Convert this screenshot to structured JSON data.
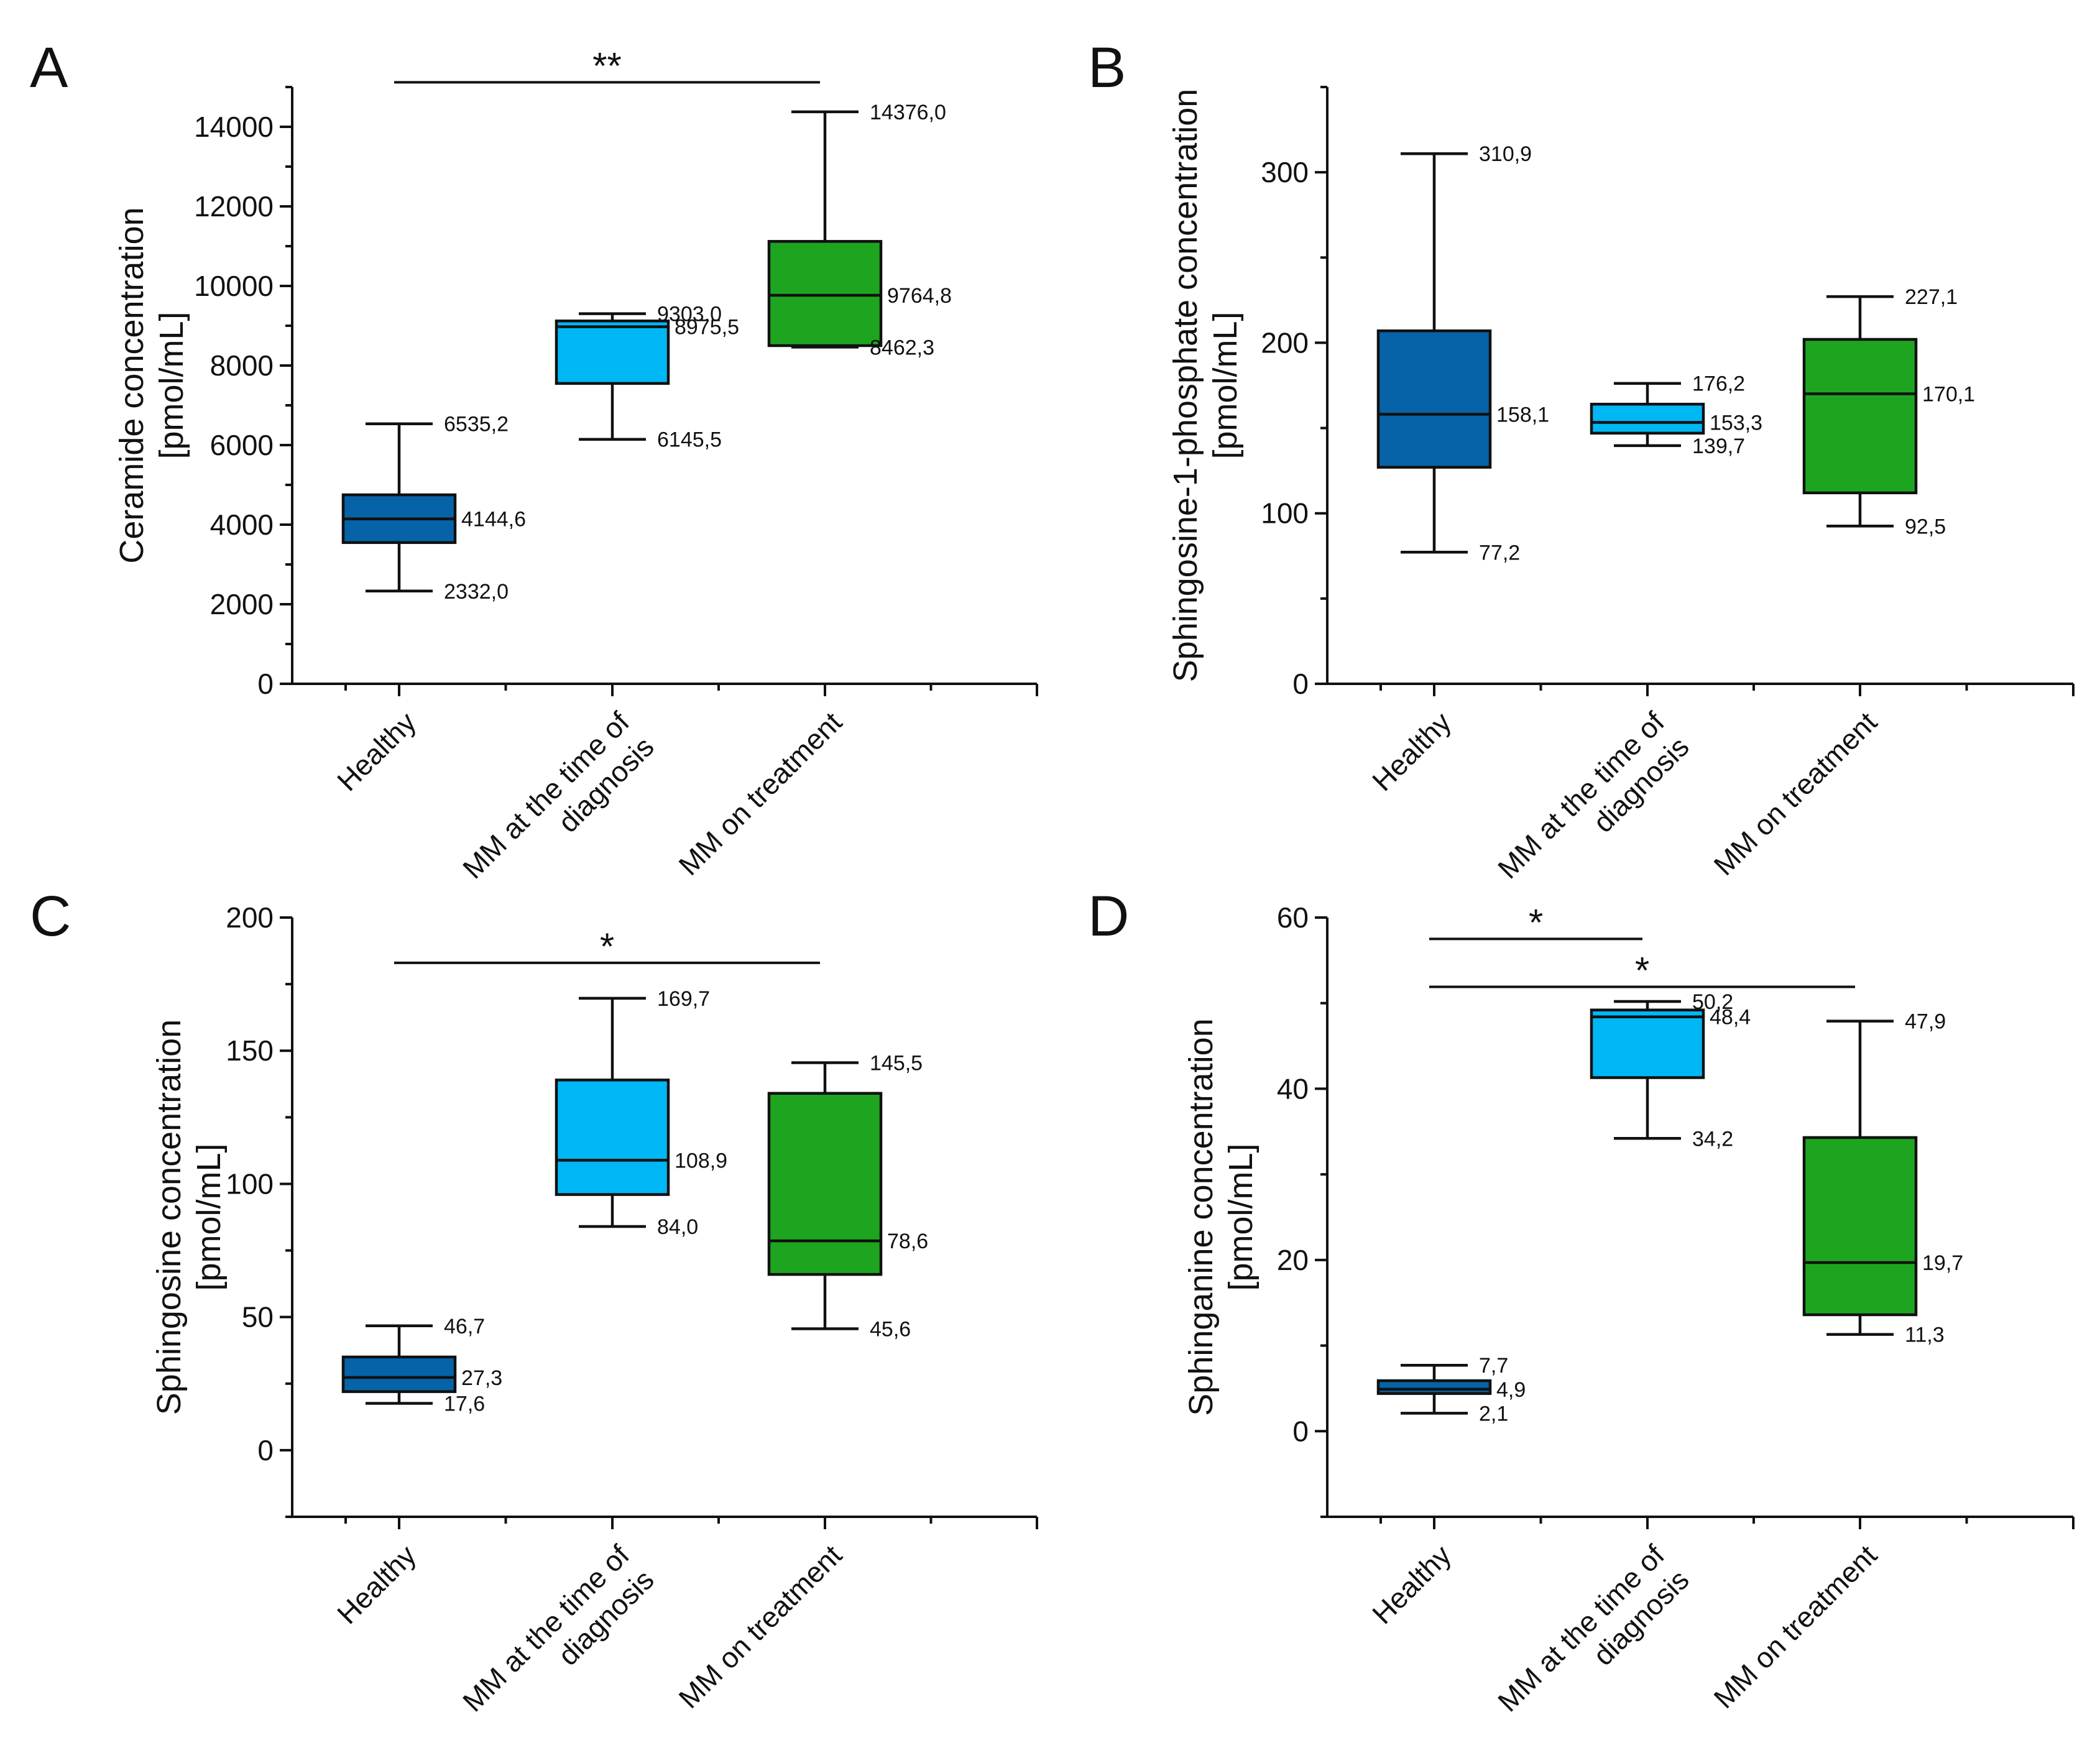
{
  "chart_data": [
    {
      "type": "box",
      "panel": "A",
      "ylabel": [
        "Ceramide concentration",
        "[pmol/mL]"
      ],
      "ylim": [
        0,
        15000
      ],
      "yticks": [
        0,
        2000,
        4000,
        6000,
        8000,
        10000,
        12000,
        14000
      ],
      "ytick_labels": [
        "0",
        "2000",
        "4000",
        "6000",
        "8000",
        "10000",
        "12000",
        "14000"
      ],
      "yminor_step": 1000,
      "categories": [
        [
          "Healthy"
        ],
        [
          "MM at the time of",
          "diagnosis"
        ],
        [
          "MM on treatment"
        ]
      ],
      "boxes": [
        {
          "min": 2332.0,
          "q1": 3550,
          "median": 4144.6,
          "q3": 4750,
          "max": 6535.2,
          "color": "#0663a8",
          "labels": {
            "max": "6535,2",
            "median": "4144,6",
            "min": "2332,0"
          }
        },
        {
          "min": 6145.5,
          "q1": 7550,
          "median": 8975.5,
          "q3": 9120,
          "max": 9303.0,
          "color": "#00b7f5",
          "labels": {
            "max": "9303,0",
            "median": "8975,5",
            "min": "6145,5"
          }
        },
        {
          "min": 8462.3,
          "q1": 8500,
          "median": 9764.8,
          "q3": 11120,
          "max": 14376.0,
          "color": "#1ea520",
          "labels": {
            "max": "14376,0",
            "median": "9764,8",
            "min": "8462,3"
          }
        }
      ],
      "significance": [
        {
          "from": 0,
          "to": 2,
          "value": 15120,
          "label": "**"
        }
      ]
    },
    {
      "type": "box",
      "panel": "B",
      "ylabel": [
        "Sphingosine-1-phosphate concentration",
        "[pmol/mL]"
      ],
      "ylim": [
        0,
        350
      ],
      "yticks": [
        0,
        100,
        200,
        300
      ],
      "ytick_labels": [
        "0",
        "100",
        "200",
        "300"
      ],
      "yminor_step": 50,
      "categories": [
        [
          "Healthy"
        ],
        [
          "MM at the time of",
          "diagnosis"
        ],
        [
          "MM on treatment"
        ]
      ],
      "boxes": [
        {
          "min": 77.2,
          "q1": 127,
          "median": 158.1,
          "q3": 207,
          "max": 310.9,
          "color": "#0663a8",
          "labels": {
            "max": "310,9",
            "median": "158,1",
            "min": "77,2"
          }
        },
        {
          "min": 139.7,
          "q1": 147,
          "median": 153.3,
          "q3": 164,
          "max": 176.2,
          "color": "#00b7f5",
          "labels": {
            "max": "176,2",
            "median": "153,3",
            "min": "139,7"
          }
        },
        {
          "min": 92.5,
          "q1": 112,
          "median": 170.1,
          "q3": 202,
          "max": 227.1,
          "color": "#1ea520",
          "labels": {
            "max": "227,1",
            "median": "170,1",
            "min": "92,5"
          }
        }
      ],
      "significance": []
    },
    {
      "type": "box",
      "panel": "C",
      "ylabel": [
        "Sphingosine concentration",
        "[pmol/mL]"
      ],
      "ylim": [
        -25,
        200
      ],
      "yticks": [
        0,
        50,
        100,
        150,
        200
      ],
      "ytick_labels": [
        "0",
        "50",
        "100",
        "150",
        "200"
      ],
      "yminor_step": 25,
      "categories": [
        [
          "Healthy"
        ],
        [
          "MM at the time of",
          "diagnosis"
        ],
        [
          "MM on treatment"
        ]
      ],
      "boxes": [
        {
          "min": 17.6,
          "q1": 22,
          "median": 27.3,
          "q3": 35,
          "max": 46.7,
          "color": "#0663a8",
          "labels": {
            "max": "46,7",
            "median": "27,3",
            "min": "17,6"
          }
        },
        {
          "min": 84.0,
          "q1": 96,
          "median": 108.9,
          "q3": 139,
          "max": 169.7,
          "color": "#00b7f5",
          "labels": {
            "max": "169,7",
            "median": "108,9",
            "min": "84,0"
          }
        },
        {
          "min": 45.6,
          "q1": 66,
          "median": 78.6,
          "q3": 134,
          "max": 145.5,
          "color": "#1ea520",
          "labels": {
            "max": "145,5",
            "median": "78,6",
            "min": "45,6"
          }
        }
      ],
      "significance": [
        {
          "from": 0,
          "to": 2,
          "value": 183,
          "label": "*"
        }
      ]
    },
    {
      "type": "box",
      "panel": "D",
      "ylabel": [
        "Sphinganine concentration",
        "[pmol/mL]"
      ],
      "ylim": [
        -10,
        60
      ],
      "yticks": [
        0,
        20,
        40,
        60
      ],
      "ytick_labels": [
        "0",
        "20",
        "40",
        "60"
      ],
      "yminor_step": 10,
      "categories": [
        [
          "Healthy"
        ],
        [
          "MM at the time of",
          "diagnosis"
        ],
        [
          "MM on treatment"
        ]
      ],
      "boxes": [
        {
          "min": 2.1,
          "q1": 4.4,
          "median": 4.9,
          "q3": 5.9,
          "max": 7.7,
          "color": "#0663a8",
          "labels": {
            "max": "7,7",
            "median": "4,9",
            "min": "2,1"
          }
        },
        {
          "min": 34.2,
          "q1": 41.3,
          "median": 48.4,
          "q3": 49.2,
          "max": 50.2,
          "color": "#00b7f5",
          "labels": {
            "max": "50,2",
            "median": "48,4",
            "min": "34,2"
          }
        },
        {
          "min": 11.3,
          "q1": 13.6,
          "median": 19.7,
          "q3": 34.3,
          "max": 47.9,
          "color": "#1ea520",
          "labels": {
            "max": "47,9",
            "median": "19,7",
            "min": "11,3"
          }
        }
      ],
      "significance": [
        {
          "from": 0,
          "to": 1,
          "value": 57.5,
          "label": "*"
        },
        {
          "from": 0,
          "to": 2,
          "value": 51.9,
          "label": "*"
        }
      ]
    }
  ]
}
